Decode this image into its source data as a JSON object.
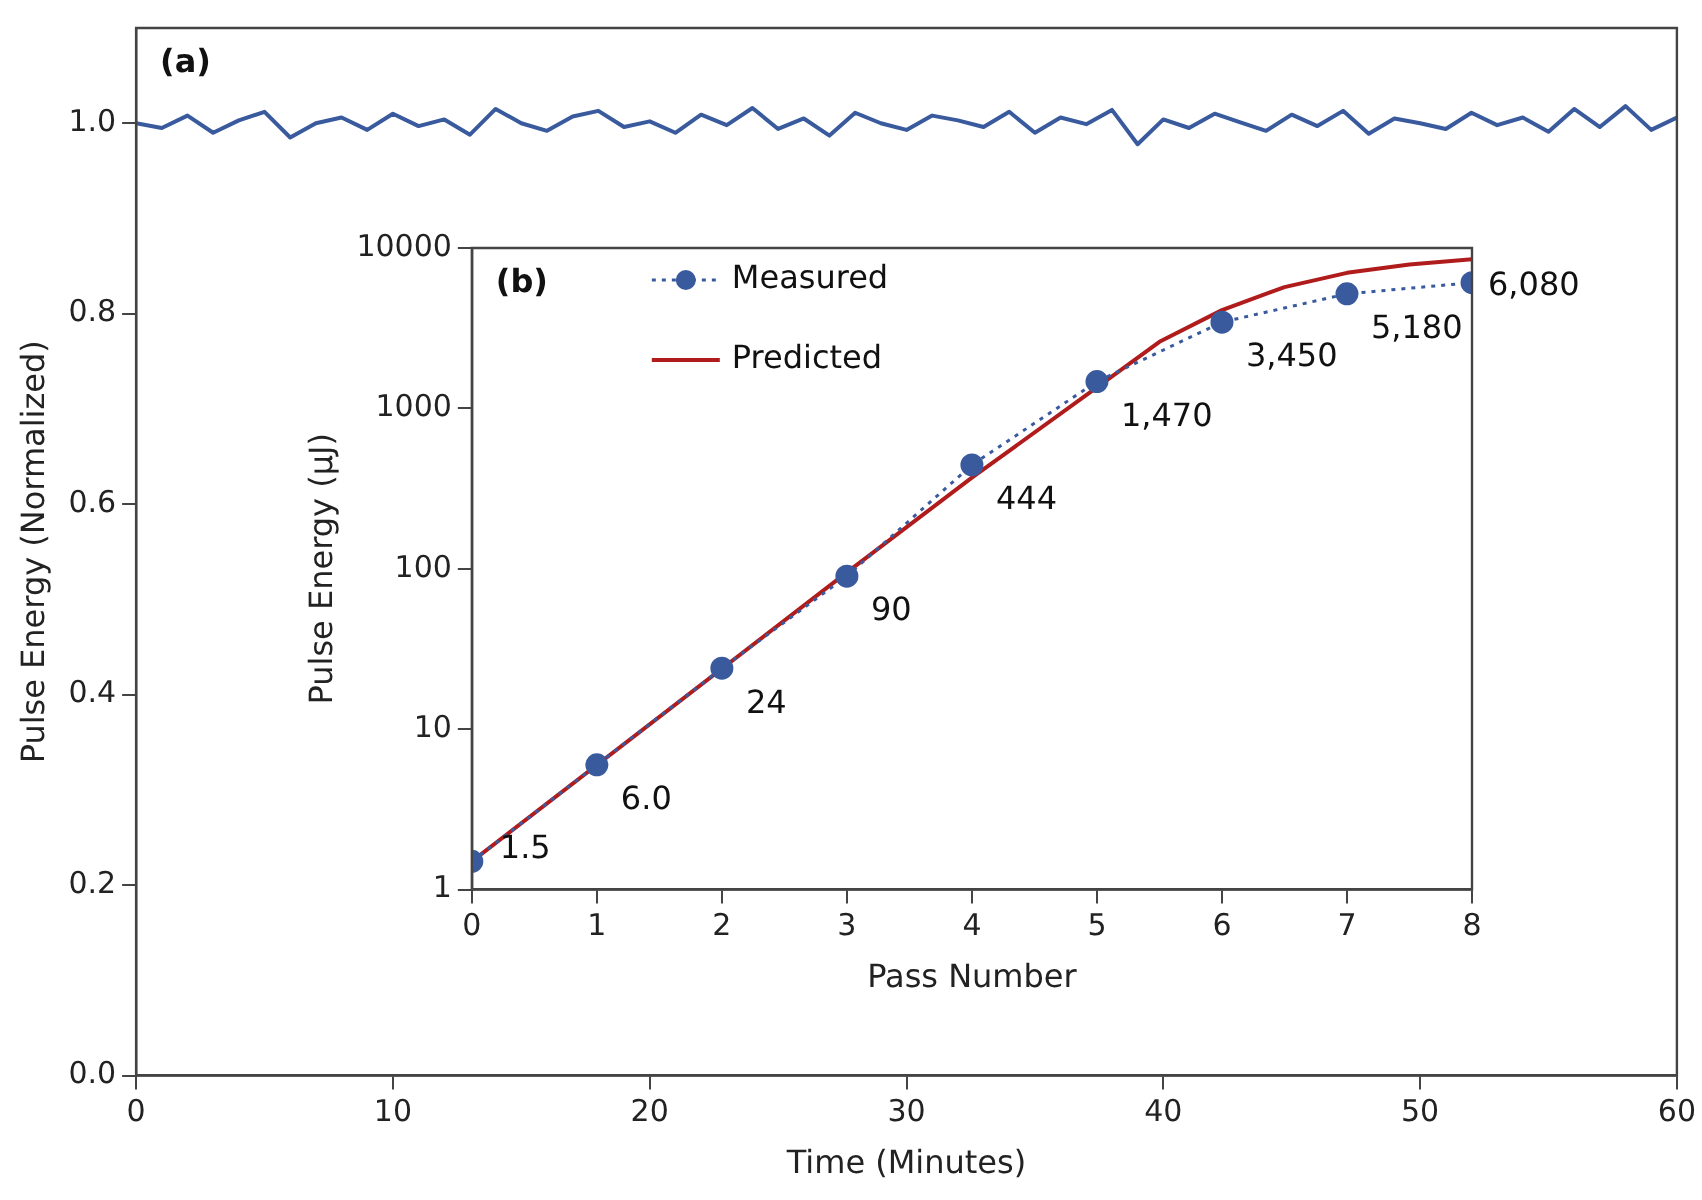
{
  "chart_data": [
    {
      "type": "line",
      "xlabel": "Time (Minutes)",
      "ylabel": "Pulse Energy (Normalized)",
      "annotations": [
        "(a)"
      ],
      "xlim": [
        0,
        60
      ],
      "xticks": [
        0,
        10,
        20,
        30,
        40,
        50,
        60
      ],
      "ylim": [
        0,
        1.1
      ],
      "yticks": [
        {
          "value": 0,
          "label": "0.0"
        },
        {
          "value": 0.2,
          "label": "0.2"
        },
        {
          "value": 0.4,
          "label": "0.4"
        },
        {
          "value": 0.6,
          "label": "0.6"
        },
        {
          "value": 0.8,
          "label": "0.8"
        },
        {
          "value": 1,
          "label": "1.0"
        }
      ],
      "grid": false,
      "legend": false,
      "marker": "none",
      "line_style": "solid",
      "series": [
        {
          "color": "#3a5a9e",
          "x": [
            0,
            1,
            2,
            3,
            4,
            5,
            6,
            7,
            8,
            9,
            10,
            11,
            12,
            13,
            14,
            15,
            16,
            17,
            18,
            19,
            20,
            21,
            22,
            23,
            24,
            25,
            26,
            27,
            28,
            29,
            30,
            31,
            32,
            33,
            34,
            35,
            36,
            37,
            38,
            39,
            40,
            41,
            42,
            43,
            44,
            45,
            46,
            47,
            48,
            49,
            50,
            51,
            52,
            53,
            54,
            55,
            56,
            57,
            58,
            59,
            60
          ],
          "values": [
            1.0,
            0.995,
            1.008,
            0.99,
            1.003,
            1.012,
            0.985,
            1.0,
            1.006,
            0.993,
            1.01,
            0.997,
            1.004,
            0.988,
            1.015,
            1.0,
            0.992,
            1.007,
            1.013,
            0.996,
            1.002,
            0.99,
            1.009,
            0.998,
            1.016,
            0.994,
            1.005,
            0.987,
            1.011,
            1.0,
            0.993,
            1.008,
            1.003,
            0.996,
            1.012,
            0.99,
            1.006,
            0.999,
            1.014,
            0.978,
            1.004,
            0.995,
            1.01,
            1.001,
            0.992,
            1.009,
            0.997,
            1.013,
            0.989,
            1.005,
            1.0,
            0.994,
            1.011,
            0.998,
            1.006,
            0.991,
            1.015,
            0.996,
            1.018,
            0.993,
            1.006
          ]
        }
      ]
    },
    {
      "type": "line",
      "xlabel": "Pass Number",
      "ylabel": "Pulse Energy (µJ)",
      "annotations": [
        "(b)"
      ],
      "log": "y",
      "xlim": [
        0,
        8
      ],
      "xticks": [
        0,
        1,
        2,
        3,
        4,
        5,
        6,
        7,
        8
      ],
      "ylim": [
        1,
        10000
      ],
      "yticks": [
        1,
        10,
        100,
        1000,
        10000
      ],
      "grid": false,
      "legend": "top left",
      "series": [
        {
          "name": "Measured",
          "color": "#3a5a9e",
          "marker": "circle",
          "line_style": "dotted",
          "x": [
            0,
            1,
            2,
            3,
            4,
            5,
            6,
            7,
            8
          ],
          "values": [
            1.5,
            6.0,
            24,
            90,
            444,
            1470,
            3450,
            5180,
            6080
          ],
          "value_labels": [
            "1.5",
            "6.0",
            "24",
            "90",
            "444",
            "1,470",
            "3,450",
            "5,180",
            "6,080"
          ]
        },
        {
          "name": "Predicted",
          "color": "#b01c1c",
          "marker": "none",
          "line_style": "solid",
          "x": [
            0,
            3,
            4,
            5,
            5.5,
            6,
            6.5,
            7,
            7.5,
            8
          ],
          "values": [
            1.5,
            95,
            370,
            1350,
            2600,
            4100,
            5700,
            7000,
            7900,
            8500
          ]
        }
      ]
    }
  ]
}
